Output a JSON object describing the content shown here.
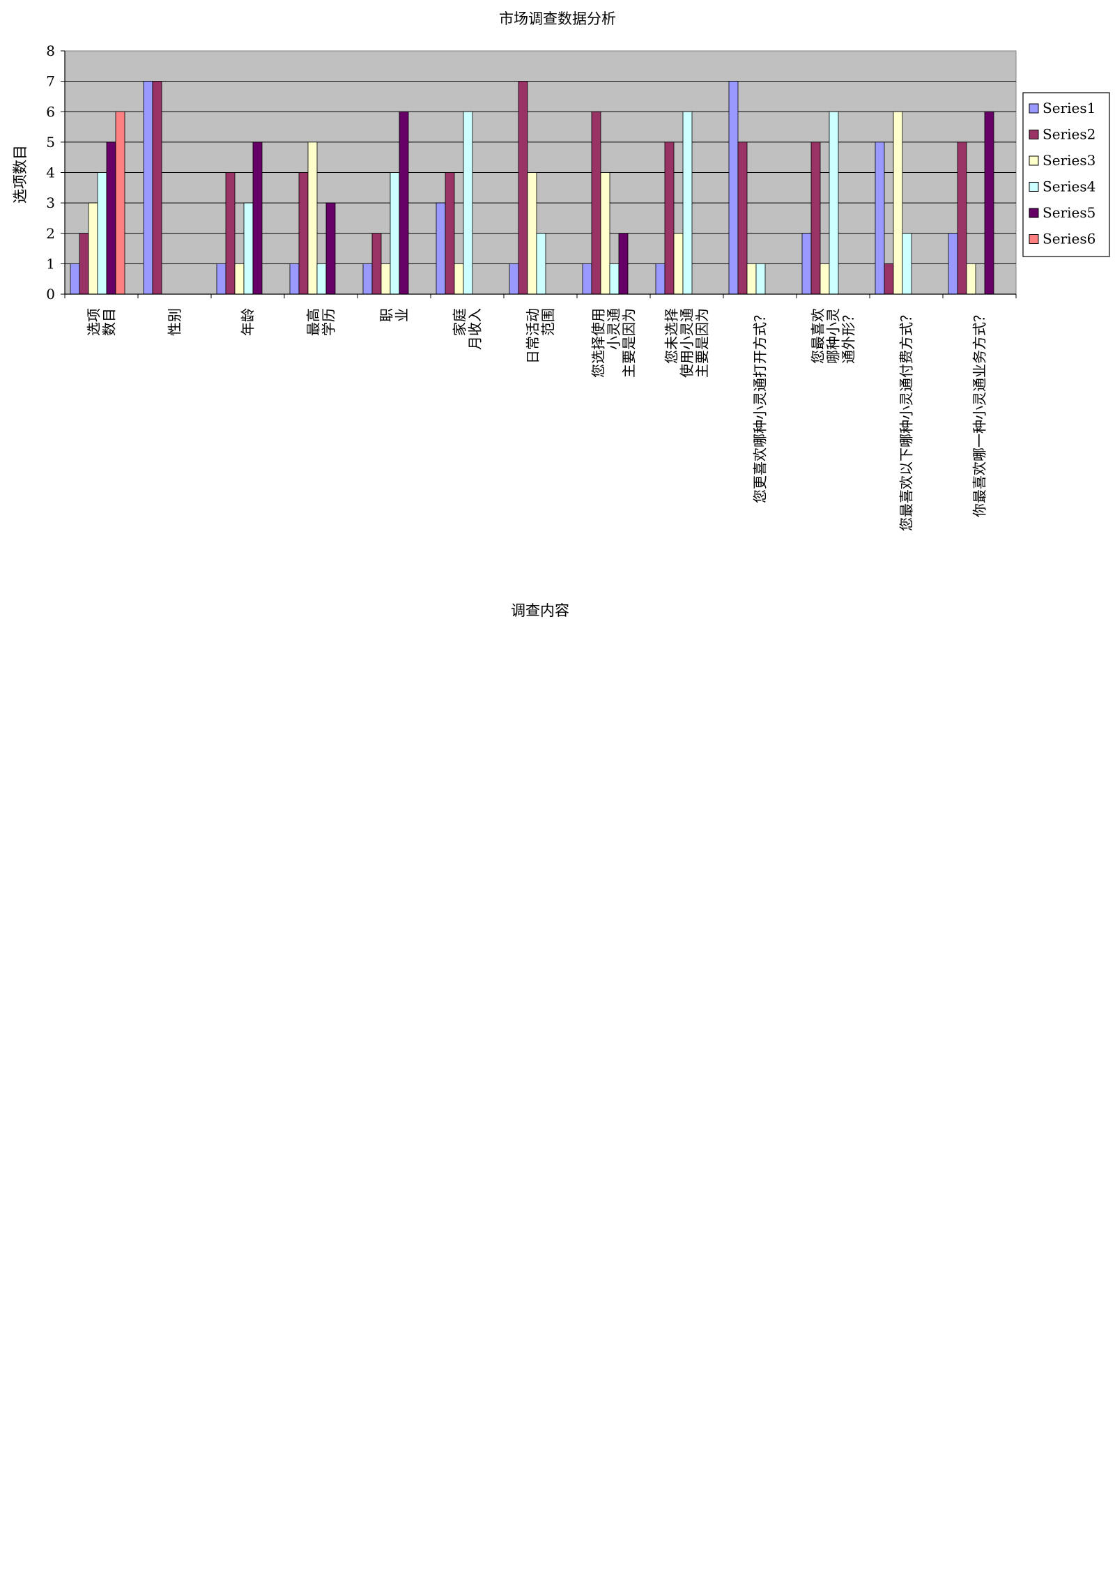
{
  "chart_data": {
    "type": "bar",
    "title": "市场调查数据分析",
    "xlabel": "调查内容",
    "ylabel": "选项数目",
    "ylim": [
      0,
      8
    ],
    "yticks": [
      0,
      1,
      2,
      3,
      4,
      5,
      6,
      7,
      8
    ],
    "grid": true,
    "legend_position": "right",
    "categories": [
      "选项\n数目",
      "性别",
      "年龄",
      "最高\n学历",
      "职\n业",
      "家庭\n月收入",
      "日常活动\n范围",
      "您选择使用\n小灵通\n主要是因为",
      "您未选择\n使用小灵通\n主要是因为",
      "您更喜欢哪种小灵通打开方式？",
      "您最喜欢\n哪种小灵\n通外形？",
      "您最喜欢以下哪种小灵通付费方式？",
      "你最喜欢哪一种小灵通业务方式？"
    ],
    "series": [
      {
        "name": "Series1",
        "color": "#9999ff",
        "values": [
          1,
          7,
          1,
          1,
          1,
          3,
          1,
          1,
          1,
          7,
          2,
          5,
          2
        ]
      },
      {
        "name": "Series2",
        "color": "#993366",
        "values": [
          2,
          7,
          4,
          4,
          2,
          4,
          7,
          6,
          5,
          5,
          5,
          1,
          5
        ]
      },
      {
        "name": "Series3",
        "color": "#ffffcc",
        "values": [
          3,
          0,
          1,
          5,
          1,
          1,
          4,
          4,
          2,
          1,
          1,
          6,
          1
        ]
      },
      {
        "name": "Series4",
        "color": "#ccffff",
        "values": [
          4,
          0,
          3,
          1,
          4,
          6,
          2,
          1,
          6,
          1,
          6,
          2,
          0
        ]
      },
      {
        "name": "Series5",
        "color": "#660066",
        "values": [
          5,
          0,
          5,
          3,
          6,
          0,
          0,
          2,
          0,
          0,
          0,
          0,
          6
        ]
      },
      {
        "name": "Series6",
        "color": "#ff8080",
        "values": [
          6,
          0,
          0,
          0,
          0,
          0,
          0,
          0,
          0,
          0,
          0,
          0,
          0
        ]
      }
    ],
    "plot_background": "#c0c0c0"
  }
}
